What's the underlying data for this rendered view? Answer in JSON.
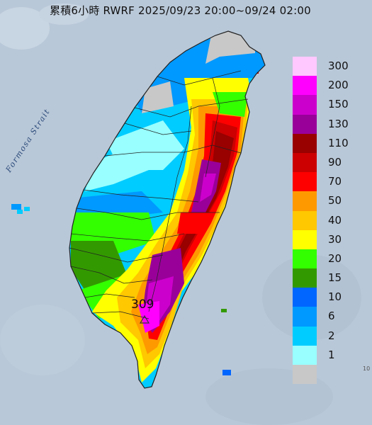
{
  "title": "累積6小時 RWRF 2025/09/23 20:00~09/24 02:00",
  "strait_label": "Formosa Strait",
  "peak": {
    "value": "309"
  },
  "corner_text": "10",
  "colors": {
    "sea": "#b9c8d8",
    "land_dry": "#c8c8c8",
    "border": "#222222",
    "marker": "#333333"
  },
  "legend": [
    {
      "label": "300",
      "color": "#ffc8ff"
    },
    {
      "label": "200",
      "color": "#ff00ff"
    },
    {
      "label": "150",
      "color": "#cc00cc"
    },
    {
      "label": "130",
      "color": "#990099"
    },
    {
      "label": "110",
      "color": "#990000"
    },
    {
      "label": "90",
      "color": "#cc0000"
    },
    {
      "label": "70",
      "color": "#ff0000"
    },
    {
      "label": "50",
      "color": "#ff9900"
    },
    {
      "label": "40",
      "color": "#ffc800"
    },
    {
      "label": "30",
      "color": "#ffff00"
    },
    {
      "label": "20",
      "color": "#33ff00"
    },
    {
      "label": "15",
      "color": "#339900"
    },
    {
      "label": "10",
      "color": "#0066ff"
    },
    {
      "label": "6",
      "color": "#0099ff"
    },
    {
      "label": "2",
      "color": "#00ccff"
    },
    {
      "label": "1",
      "color": "#99ffff"
    },
    {
      "label": "",
      "color": "#c8c8c8"
    }
  ]
}
